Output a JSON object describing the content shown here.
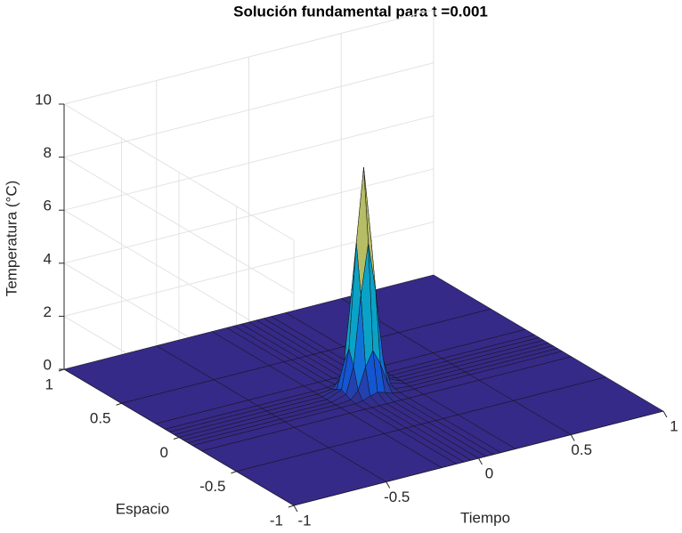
{
  "chart_data": {
    "type": "surface",
    "title": "Solución fundamental para t =0.001",
    "xlabel": "Tiempo",
    "ylabel": "Espacio",
    "zlabel": "Temperatura (°C)",
    "x": [
      -1,
      -0.5,
      -0.2,
      -0.12,
      -0.08,
      -0.04,
      0,
      0.04,
      0.08,
      0.12,
      0.2,
      0.5,
      1
    ],
    "y": [
      -1,
      -0.5,
      -0.2,
      -0.12,
      -0.08,
      -0.04,
      0,
      0.04,
      0.08,
      0.12,
      0.2,
      0.5,
      1
    ],
    "z": [
      [
        0,
        0,
        0,
        0,
        0,
        0,
        0,
        0,
        0,
        0,
        0,
        0,
        0
      ],
      [
        0,
        0,
        0,
        0,
        0,
        0,
        0,
        0,
        0,
        0,
        0,
        0,
        0
      ],
      [
        0,
        0,
        0,
        0,
        0,
        0,
        0,
        0,
        0,
        0,
        0,
        0,
        0
      ],
      [
        0,
        0,
        0,
        0.01,
        0.05,
        0.15,
        0.23,
        0.15,
        0.05,
        0.01,
        0,
        0,
        0
      ],
      [
        0,
        0,
        0,
        0.05,
        0.34,
        1.14,
        1.7,
        1.14,
        0.34,
        0.05,
        0,
        0,
        0
      ],
      [
        0,
        0,
        0,
        0.15,
        1.14,
        3.77,
        5.63,
        3.77,
        1.14,
        0.15,
        0,
        0,
        0
      ],
      [
        0,
        0,
        0,
        0.23,
        1.7,
        5.63,
        8.4,
        5.63,
        1.7,
        0.23,
        0,
        0,
        0
      ],
      [
        0,
        0,
        0,
        0.15,
        1.14,
        3.77,
        5.63,
        3.77,
        1.14,
        0.15,
        0,
        0,
        0
      ],
      [
        0,
        0,
        0,
        0.05,
        0.34,
        1.14,
        1.7,
        1.14,
        0.34,
        0.05,
        0,
        0,
        0
      ],
      [
        0,
        0,
        0,
        0.01,
        0.05,
        0.15,
        0.23,
        0.15,
        0.05,
        0.01,
        0,
        0,
        0
      ],
      [
        0,
        0,
        0,
        0,
        0,
        0,
        0,
        0,
        0,
        0,
        0,
        0,
        0
      ],
      [
        0,
        0,
        0,
        0,
        0,
        0,
        0,
        0,
        0,
        0,
        0,
        0,
        0
      ],
      [
        0,
        0,
        0,
        0,
        0,
        0,
        0,
        0,
        0,
        0,
        0,
        0,
        0
      ]
    ],
    "xlim": [
      -1,
      1
    ],
    "ylim": [
      -1,
      1
    ],
    "zlim": [
      0,
      10
    ],
    "xticks": [
      -1,
      -0.5,
      0,
      0.5,
      1
    ],
    "yticks": [
      -1,
      -0.5,
      0,
      0.5,
      1
    ],
    "zticks": [
      0,
      2,
      4,
      6,
      8,
      10
    ],
    "colormap": "parula",
    "grid": true
  }
}
